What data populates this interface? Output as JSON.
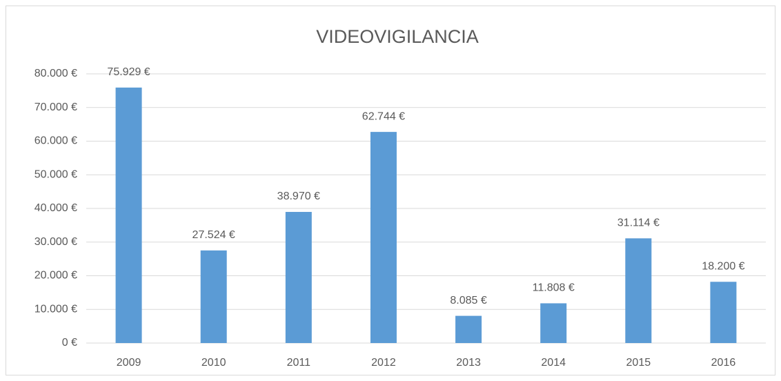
{
  "chart_data": {
    "type": "bar",
    "title": "VIDEOVIGILANCIA",
    "categories": [
      "2009",
      "2010",
      "2011",
      "2012",
      "2013",
      "2014",
      "2015",
      "2016"
    ],
    "values": [
      75929,
      27524,
      38970,
      62744,
      8085,
      11808,
      31114,
      18200
    ],
    "value_labels": [
      "75.929 €",
      "27.524 €",
      "38.970 €",
      "62.744 €",
      "8.085 €",
      "11.808 €",
      "31.114 €",
      "18.200 €"
    ],
    "color": "#5b9bd5",
    "ylim": [
      0,
      80000
    ],
    "yticks": [
      {
        "value": 0,
        "label": "0 €"
      },
      {
        "value": 10000,
        "label": "10.000 €"
      },
      {
        "value": 20000,
        "label": "20.000 €"
      },
      {
        "value": 30000,
        "label": "30.000 €"
      },
      {
        "value": 40000,
        "label": "40.000 €"
      },
      {
        "value": 50000,
        "label": "50.000 €"
      },
      {
        "value": 60000,
        "label": "60.000 €"
      },
      {
        "value": 70000,
        "label": "70.000 €"
      },
      {
        "value": 80000,
        "label": "80.000 €"
      }
    ],
    "grid": true
  }
}
